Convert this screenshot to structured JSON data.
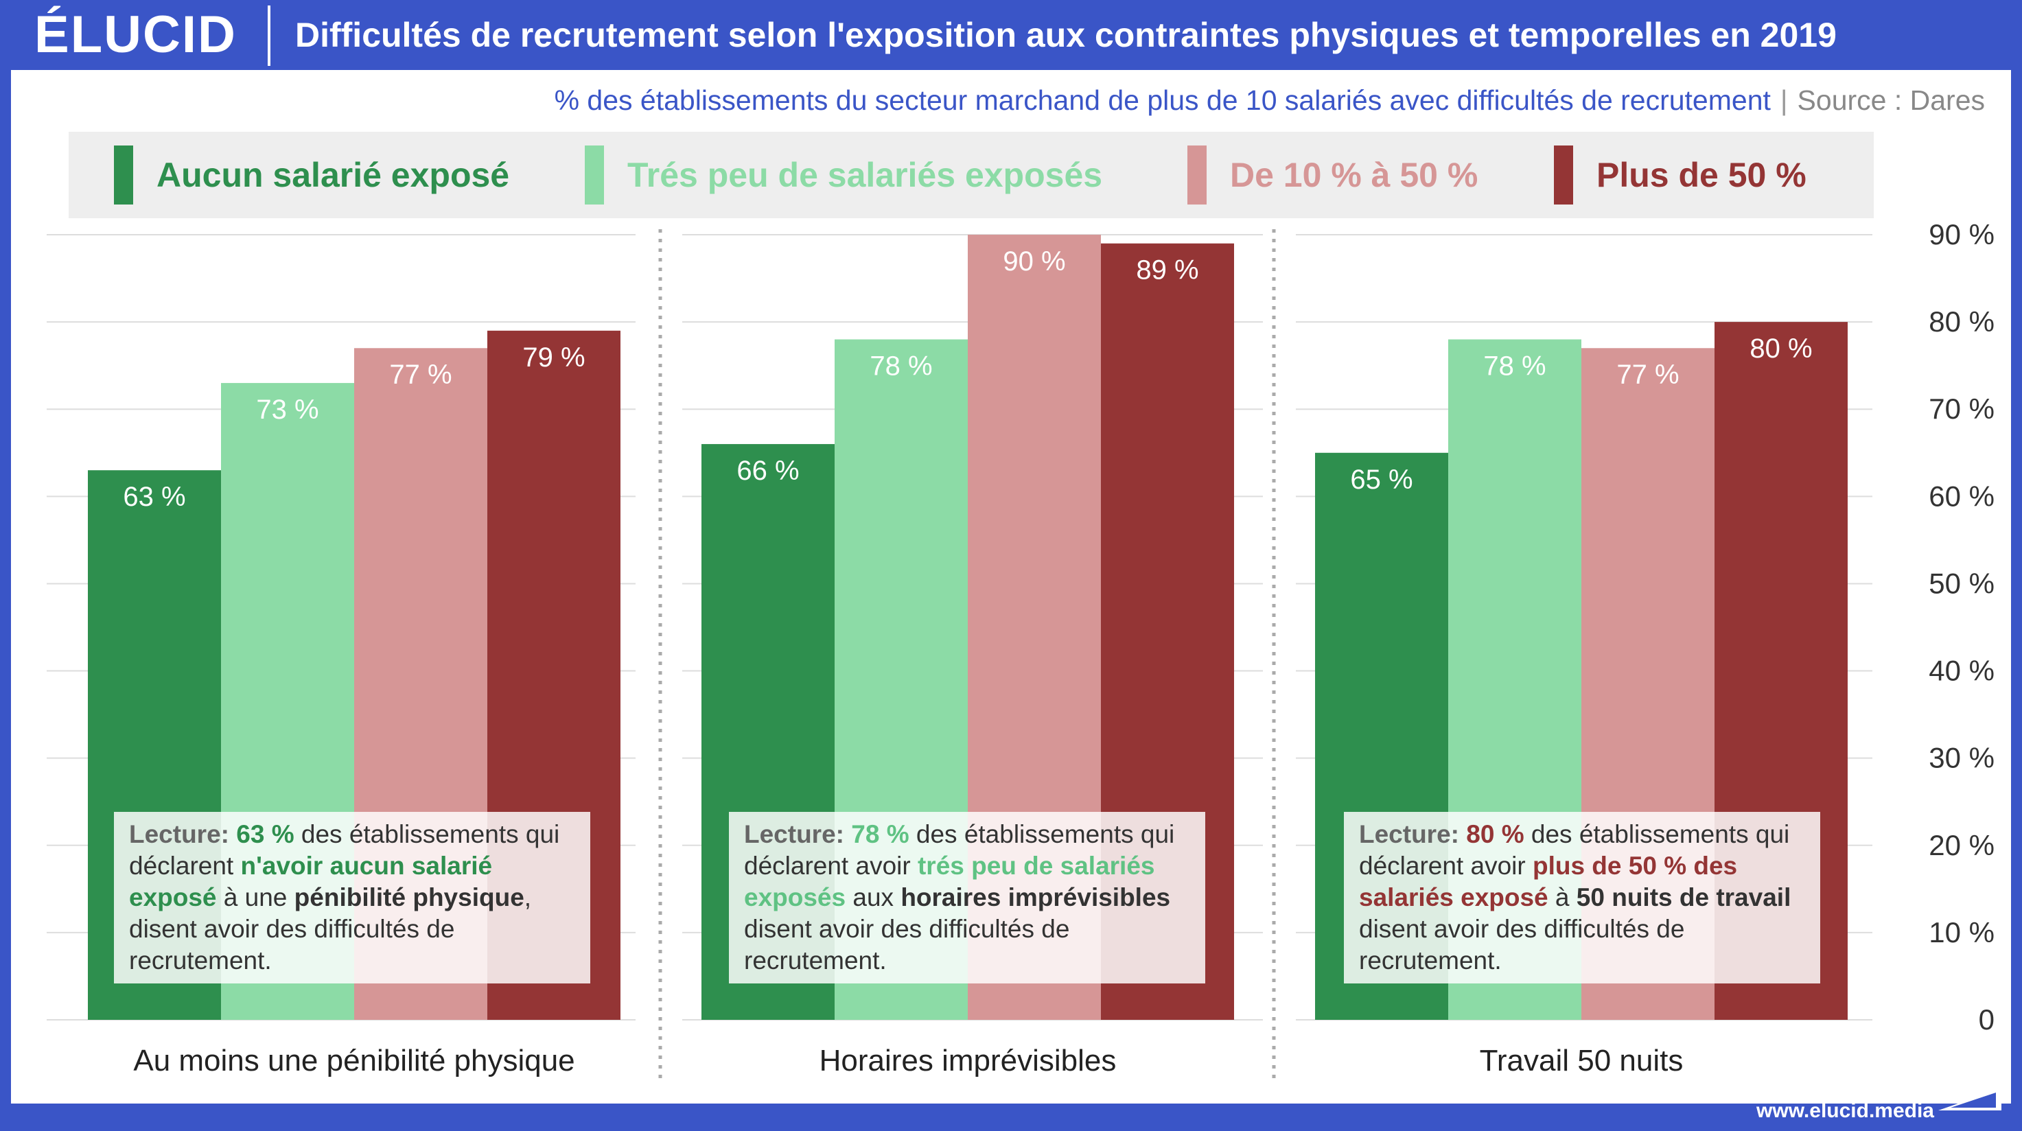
{
  "header": {
    "logo": "ÉLUCID",
    "title": "Difficultés de recrutement selon l'exposition aux contraintes physiques et temporelles en 2019"
  },
  "subtitle": {
    "text": "% des établissements du secteur marchand de plus de 10 salariés avec difficultés de recrutement",
    "separator": "|",
    "source": "Source : Dares"
  },
  "colors": {
    "aucun": "#2e8f4e",
    "tres_peu": "#8cdba6",
    "de_10_50": "#d69696",
    "plus_50": "#943535",
    "brand": "#3a55c7"
  },
  "chart_data": {
    "type": "bar",
    "title": "Difficultés de recrutement selon l'exposition aux contraintes physiques et temporelles en 2019",
    "categories": [
      "Au moins une pénibilité physique",
      "Horaires imprévisibles",
      "Travail 50 nuits"
    ],
    "series": [
      {
        "name": "Aucun salarié exposé",
        "values": [
          63,
          66,
          65
        ],
        "labels": [
          "63 %",
          "66 %",
          "65 %"
        ]
      },
      {
        "name": "Trés peu de salariés exposés",
        "values": [
          73,
          78,
          78
        ],
        "labels": [
          "73 %",
          "78 %",
          "78 %"
        ]
      },
      {
        "name": "De 10 % à 50 %",
        "values": [
          77,
          90,
          77
        ],
        "labels": [
          "77 %",
          "90 %",
          "77 %"
        ]
      },
      {
        "name": "Plus de 50 %",
        "values": [
          79,
          89,
          80
        ],
        "labels": [
          "79 %",
          "89 %",
          "80 %"
        ]
      }
    ],
    "ylim": [
      0,
      90
    ],
    "y_ticks": [
      0,
      10,
      20,
      30,
      40,
      50,
      60,
      70,
      80,
      90
    ],
    "y_tick_labels": [
      "0",
      "10 %",
      "20 %",
      "30 %",
      "40 %",
      "50 %",
      "60 %",
      "70 %",
      "80 %",
      "90 %"
    ],
    "y_axis_side": "right",
    "grid": true,
    "legend": "top"
  },
  "notes": [
    {
      "lecture": "Lecture:",
      "value": "63 %",
      "t1": "des établissements qui déclarent",
      "hl": "n'avoir aucun salarié exposé",
      "t2": "à une",
      "b": "pénibilité physique",
      "t3": ", disent avoir des difficultés de recrutement."
    },
    {
      "lecture": "Lecture:",
      "value": "78 %",
      "t1": "des établissements qui déclarent avoir",
      "hl": "trés peu de salariés exposés",
      "t2": "aux",
      "b": "horaires imprévisibles",
      "t3": "disent avoir des difficultés de recrutement."
    },
    {
      "lecture": "Lecture:",
      "value": "80 %",
      "t1": "des établissements qui déclarent avoir",
      "hl": "plus de 50 % des salariés exposé",
      "t2": "à",
      "b": "50 nuits de travail",
      "t3": "disent avoir des difficultés de recrutement."
    }
  ],
  "footer": {
    "url": "www.elucid.media"
  }
}
